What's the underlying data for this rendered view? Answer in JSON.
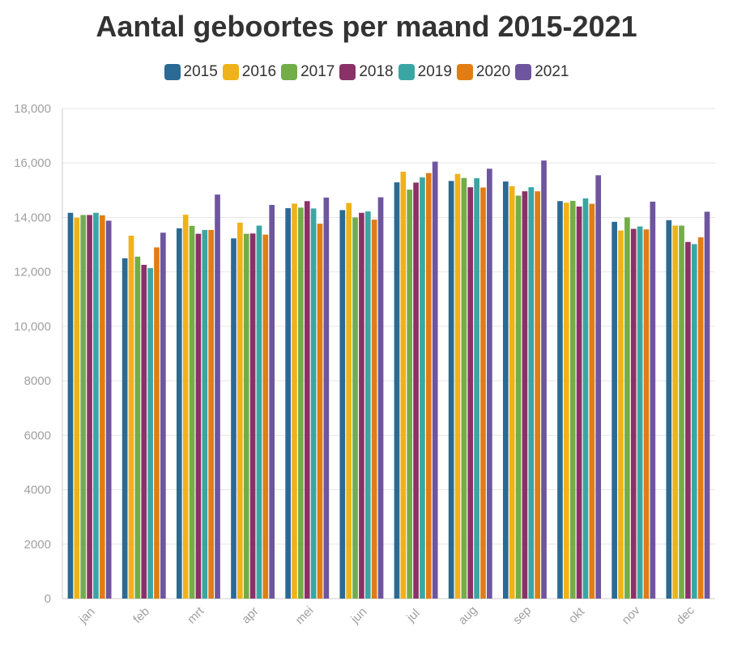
{
  "chart_data": {
    "type": "bar",
    "title": "Aantal geboortes per maand 2015-2021",
    "xlabel": "",
    "ylabel": "",
    "ylim": [
      0,
      18000
    ],
    "yticks": [
      0,
      2000,
      4000,
      6000,
      8000,
      10000,
      12000,
      14000,
      16000,
      18000
    ],
    "ytick_labels": [
      "0",
      "2000",
      "4000",
      "6000",
      "8000",
      "10,000",
      "12,000",
      "14,000",
      "16,000",
      "18,000"
    ],
    "grid": true,
    "legend_position": "top-center",
    "categories": [
      "jan",
      "feb",
      "mrt",
      "apr",
      "mei",
      "jun",
      "jul",
      "aug",
      "sep",
      "okt",
      "nov",
      "dec"
    ],
    "series": [
      {
        "name": "2015",
        "color": "#2b6a94",
        "values": [
          14170,
          12500,
          13600,
          13230,
          14340,
          14270,
          15290,
          15340,
          15320,
          14600,
          13840,
          13900
        ]
      },
      {
        "name": "2016",
        "color": "#f0b21a",
        "values": [
          13990,
          13330,
          14100,
          13810,
          14510,
          14530,
          15680,
          15600,
          15150,
          14540,
          13520,
          13700
        ]
      },
      {
        "name": "2017",
        "color": "#73ad48",
        "values": [
          14090,
          12560,
          13690,
          13400,
          14360,
          14000,
          15020,
          15450,
          14800,
          14610,
          14000,
          13700
        ]
      },
      {
        "name": "2018",
        "color": "#8c3167",
        "values": [
          14090,
          12260,
          13400,
          13410,
          14600,
          14170,
          15280,
          15110,
          14960,
          14400,
          13580,
          13100
        ]
      },
      {
        "name": "2019",
        "color": "#3aa6a3",
        "values": [
          14170,
          12140,
          13540,
          13700,
          14330,
          14220,
          15470,
          15440,
          15110,
          14700,
          13670,
          13020
        ]
      },
      {
        "name": "2020",
        "color": "#e07d14",
        "values": [
          14080,
          12900,
          13540,
          13370,
          13770,
          13920,
          15630,
          15100,
          14960,
          14500,
          13560,
          13270
        ]
      },
      {
        "name": "2021",
        "color": "#6e559f",
        "values": [
          13880,
          13440,
          14840,
          14460,
          14730,
          14740,
          16050,
          15790,
          16090,
          15550,
          14580,
          14210
        ]
      }
    ]
  }
}
